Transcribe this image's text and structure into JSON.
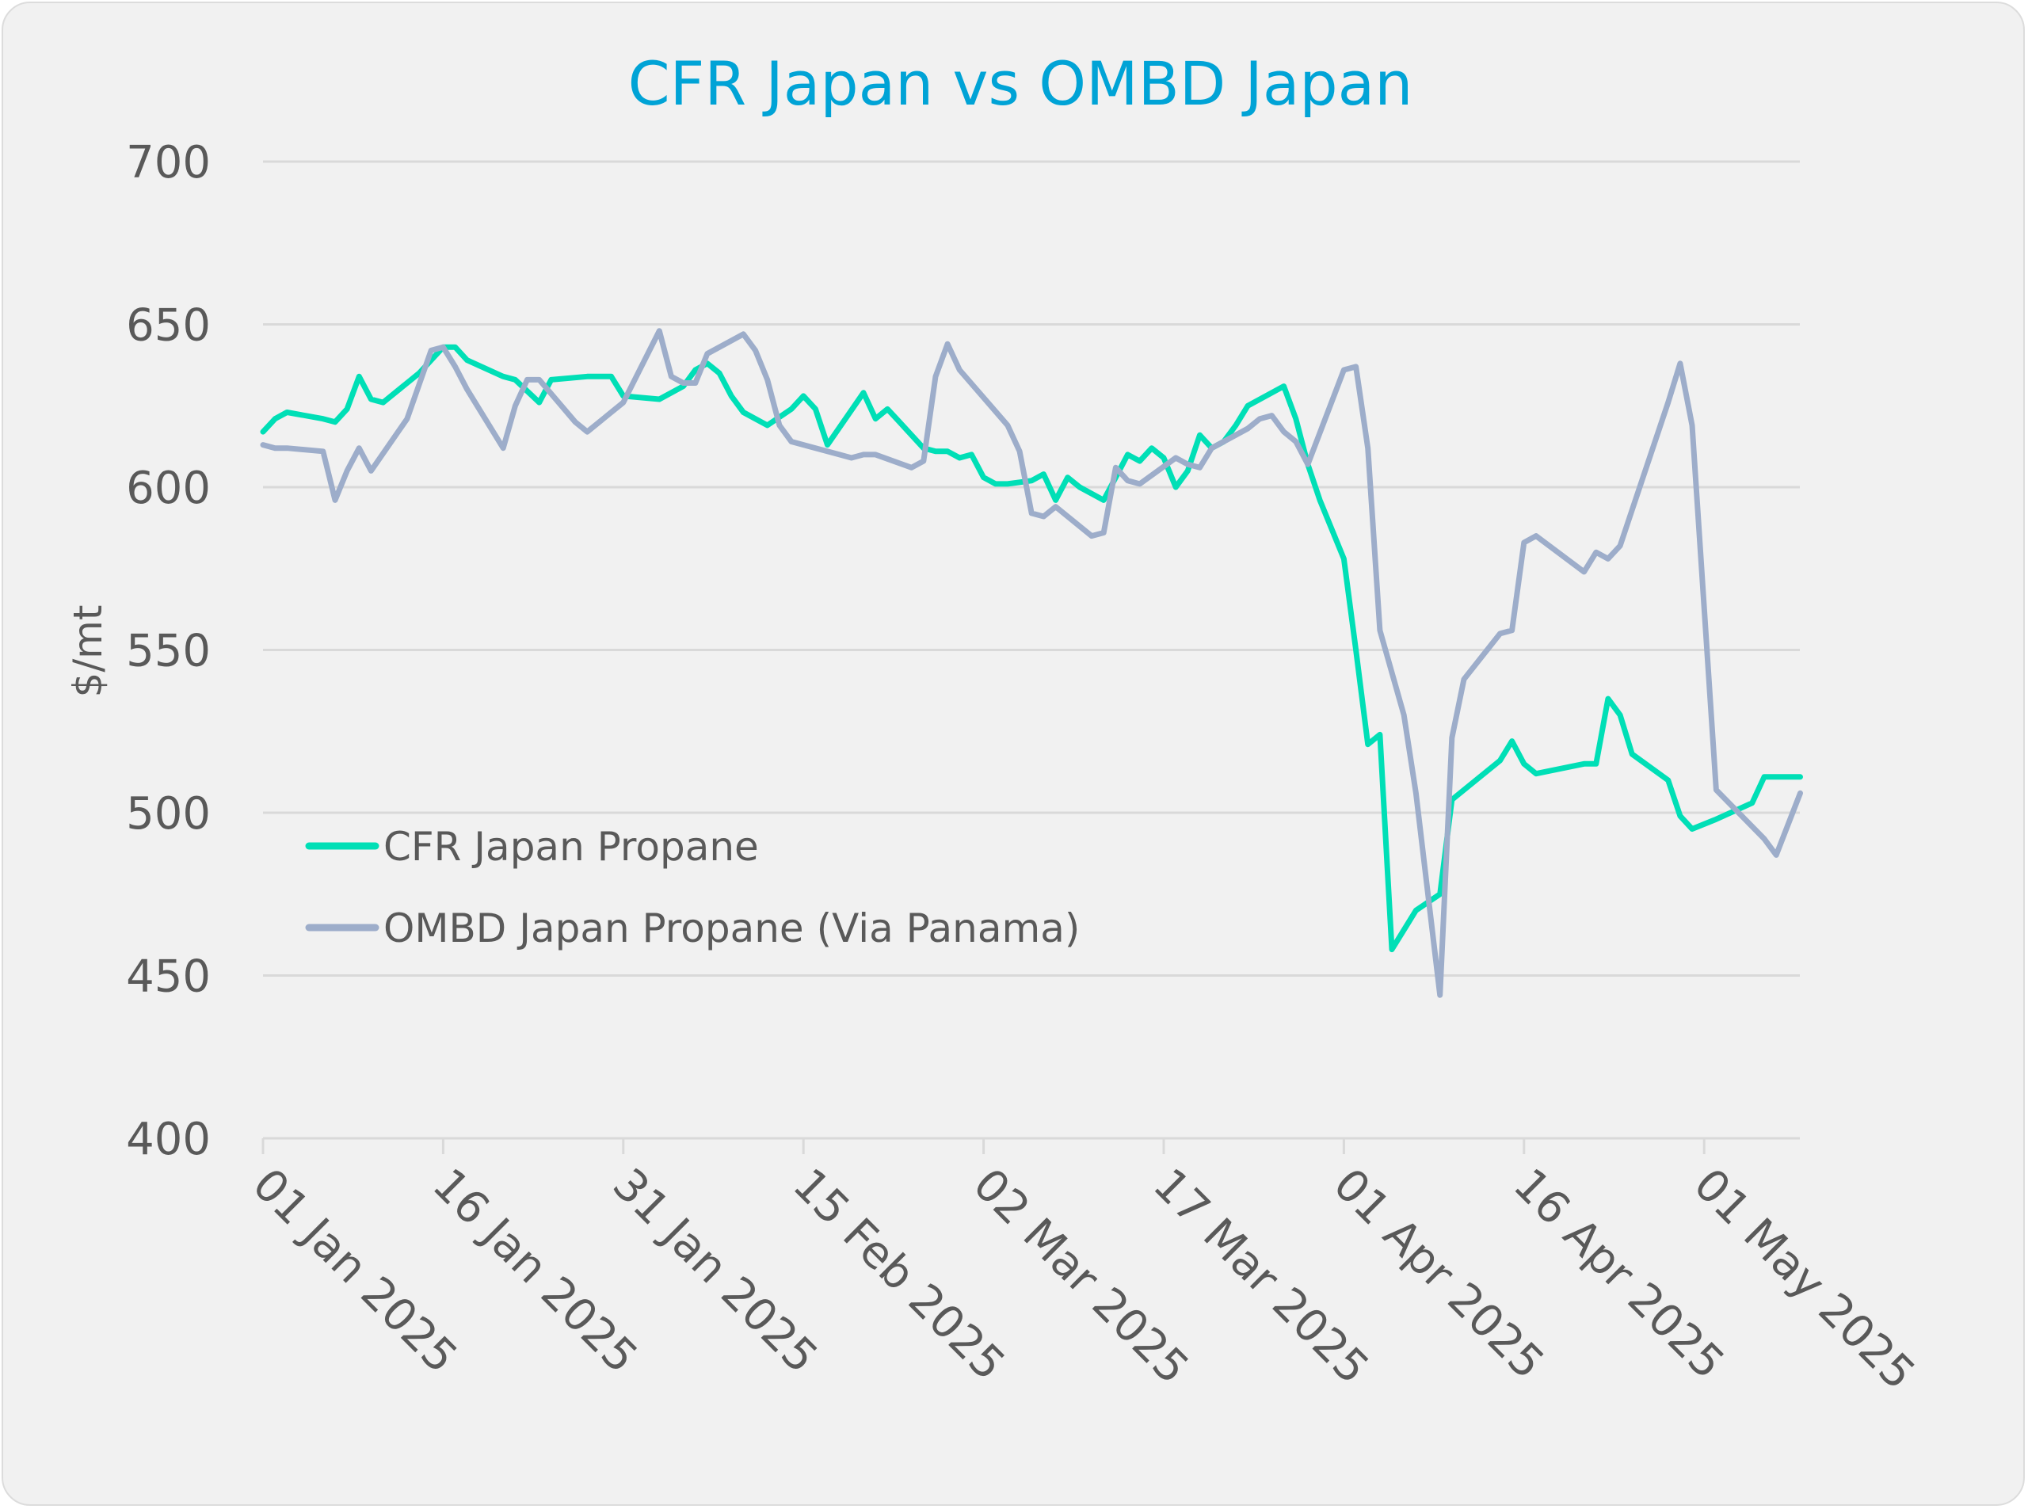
{
  "chart_data": {
    "type": "line",
    "title": "CFR Japan vs OMBD Japan",
    "xlabel": "",
    "ylabel": "$/mt",
    "ylim": [
      400,
      700
    ],
    "yticks": [
      400,
      450,
      500,
      550,
      600,
      650,
      700
    ],
    "ytick_labels": [
      "400",
      "450",
      "500",
      "550",
      "600",
      "650",
      "700"
    ],
    "x_start": "2025-01-01",
    "x_end_day": 128,
    "xticks_day": [
      0,
      15,
      30,
      45,
      60,
      75,
      90,
      105,
      120
    ],
    "xtick_labels": [
      "01 Jan 2025",
      "16 Jan 2025",
      "31 Jan 2025",
      "15 Feb 2025",
      "02 Mar 2025",
      "17 Mar 2025",
      "01 Apr 2025",
      "16 Apr 2025",
      "01 May 2025"
    ],
    "grid": true,
    "legend_position": "lower-left",
    "series": [
      {
        "name": "CFR Japan Propane",
        "color": "#00dfb6",
        "days": [
          0,
          1,
          2,
          5,
          6,
          7,
          8,
          9,
          10,
          13,
          15,
          16,
          17,
          20,
          21,
          23,
          24,
          27,
          29,
          30,
          33,
          35,
          36,
          37,
          38,
          39,
          40,
          42,
          44,
          45,
          46,
          47,
          50,
          51,
          52,
          53,
          55,
          56,
          57,
          58,
          59,
          60,
          61,
          62,
          64,
          65,
          66,
          67,
          68,
          69,
          70,
          71,
          72,
          73,
          74,
          75,
          76,
          77,
          78,
          79,
          80,
          81,
          82,
          85,
          86,
          87,
          88,
          90,
          91,
          92,
          93,
          94,
          96,
          98,
          99,
          100,
          103,
          104,
          105,
          106,
          110,
          111,
          112,
          113,
          114,
          117,
          118,
          119,
          121,
          124,
          125,
          126,
          128
        ],
        "values": [
          617,
          621,
          623,
          621,
          620,
          624,
          634,
          627,
          626,
          635,
          643,
          643,
          639,
          634,
          633,
          626,
          633,
          634,
          634,
          628,
          627,
          631,
          636,
          638,
          635,
          628,
          623,
          619,
          624,
          628,
          624,
          613,
          629,
          621,
          624,
          620,
          612,
          611,
          611,
          609,
          610,
          603,
          601,
          601,
          602,
          604,
          596,
          603,
          600,
          598,
          596,
          603,
          610,
          608,
          612,
          609,
          600,
          605,
          616,
          612,
          614,
          619,
          625,
          631,
          621,
          607,
          596,
          578,
          550,
          521,
          524,
          458,
          470,
          475,
          504,
          507,
          516,
          522,
          515,
          512,
          515,
          515,
          535,
          530,
          518,
          510,
          499,
          495,
          498,
          503,
          511,
          511,
          511
        ]
      },
      {
        "name": "OMBD Japan Propane (Via Panama)",
        "color": "#9dadca",
        "days": [
          0,
          1,
          2,
          5,
          6,
          7,
          8,
          9,
          12,
          14,
          15,
          16,
          17,
          20,
          21,
          22,
          23,
          26,
          27,
          30,
          33,
          34,
          35,
          36,
          37,
          40,
          41,
          42,
          43,
          44,
          48,
          49,
          50,
          51,
          54,
          55,
          56,
          57,
          58,
          62,
          63,
          64,
          65,
          66,
          69,
          70,
          71,
          72,
          73,
          76,
          77,
          78,
          79,
          82,
          83,
          84,
          85,
          86,
          87,
          90,
          91,
          92,
          93,
          95,
          96,
          98,
          99,
          100,
          103,
          104,
          105,
          106,
          110,
          111,
          112,
          113,
          114,
          117,
          118,
          119,
          121,
          125,
          126,
          128
        ],
        "values": [
          613,
          612,
          612,
          611,
          596,
          605,
          612,
          605,
          621,
          642,
          643,
          637,
          630,
          612,
          625,
          633,
          633,
          620,
          617,
          626,
          648,
          634,
          632,
          632,
          641,
          647,
          642,
          633,
          619,
          614,
          610,
          609,
          610,
          610,
          606,
          608,
          634,
          644,
          636,
          619,
          611,
          592,
          591,
          594,
          585,
          586,
          606,
          602,
          601,
          609,
          607,
          606,
          612,
          618,
          621,
          622,
          617,
          614,
          607,
          636,
          637,
          612,
          556,
          530,
          506,
          444,
          523,
          541,
          555,
          556,
          583,
          585,
          574,
          580,
          578,
          582,
          593,
          626,
          638,
          619,
          507,
          492,
          487,
          506
        ]
      }
    ]
  }
}
